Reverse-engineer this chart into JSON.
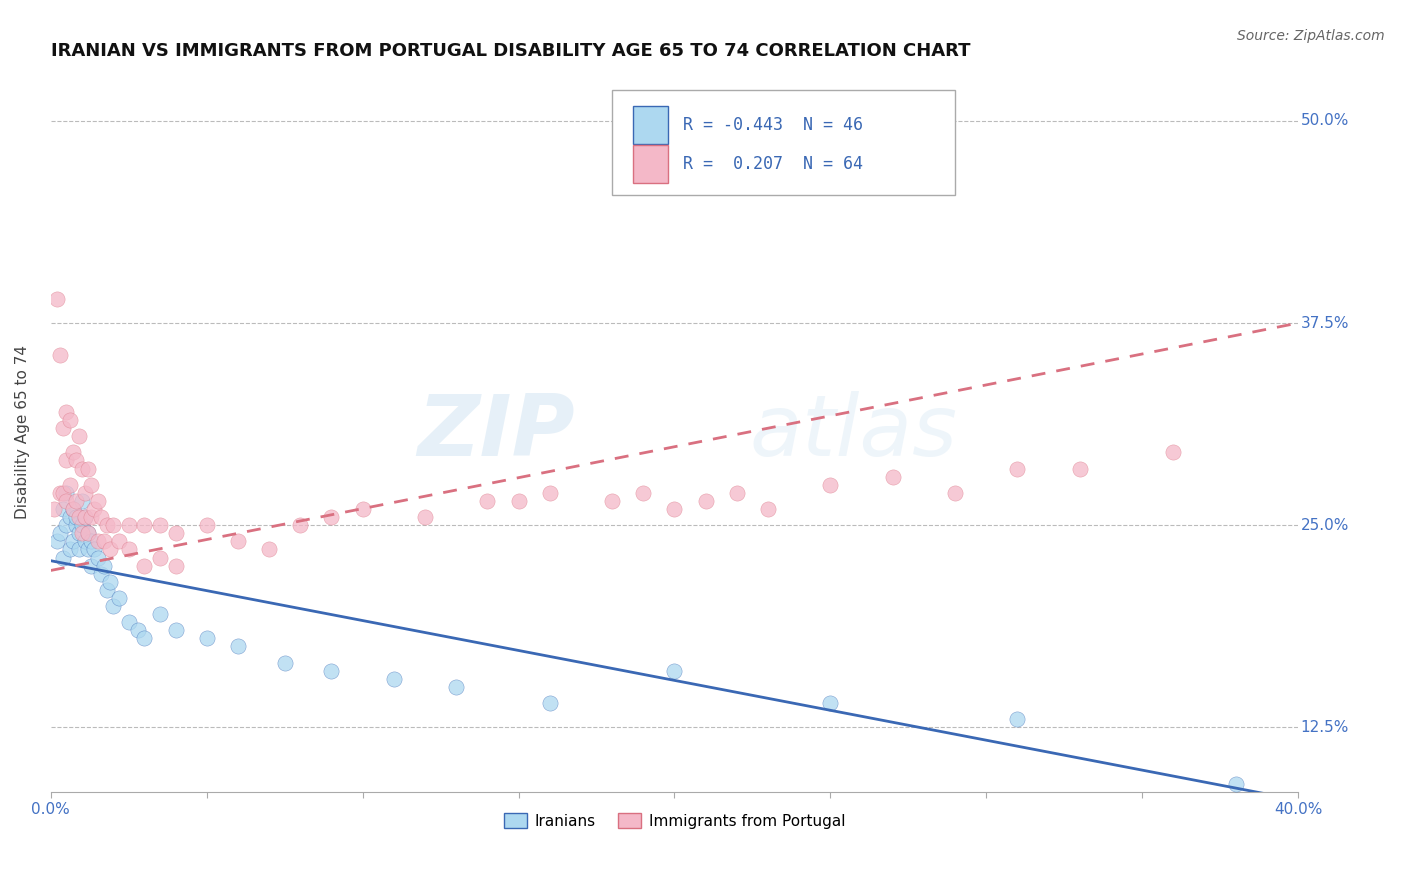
{
  "title": "IRANIAN VS IMMIGRANTS FROM PORTUGAL DISABILITY AGE 65 TO 74 CORRELATION CHART",
  "source": "Source: ZipAtlas.com",
  "ylabel": "Disability Age 65 to 74",
  "xlim": [
    0.0,
    0.4
  ],
  "ylim": [
    0.085,
    0.53
  ],
  "ytick_positions": [
    0.125,
    0.25,
    0.375,
    0.5
  ],
  "yticklabels": [
    "12.5%",
    "25.0%",
    "37.5%",
    "50.0%"
  ],
  "xtick_positions": [
    0.0,
    0.05,
    0.1,
    0.15,
    0.2,
    0.25,
    0.3,
    0.35,
    0.4
  ],
  "xticklabels_show": [
    "0.0%",
    "40.0%"
  ],
  "legend_r1": "R = -0.443",
  "legend_n1": "N = 46",
  "legend_r2": "R =  0.207",
  "legend_n2": "N = 64",
  "color_iranian": "#ADD8F0",
  "color_portugal": "#F4B8C8",
  "line_color_iranian": "#3A68B4",
  "line_color_portugal": "#D97080",
  "background_color": "#FFFFFF",
  "grid_color": "#BBBBBB",
  "watermark": "ZIPatlas",
  "iranians_x": [
    0.002,
    0.003,
    0.004,
    0.004,
    0.005,
    0.005,
    0.006,
    0.006,
    0.007,
    0.007,
    0.008,
    0.008,
    0.009,
    0.009,
    0.01,
    0.01,
    0.011,
    0.011,
    0.012,
    0.012,
    0.013,
    0.013,
    0.014,
    0.015,
    0.016,
    0.017,
    0.018,
    0.019,
    0.02,
    0.022,
    0.025,
    0.028,
    0.03,
    0.035,
    0.04,
    0.05,
    0.06,
    0.075,
    0.09,
    0.11,
    0.13,
    0.16,
    0.2,
    0.25,
    0.31,
    0.38
  ],
  "iranians_y": [
    0.24,
    0.245,
    0.26,
    0.23,
    0.25,
    0.27,
    0.255,
    0.235,
    0.26,
    0.24,
    0.25,
    0.255,
    0.235,
    0.245,
    0.25,
    0.265,
    0.24,
    0.255,
    0.235,
    0.245,
    0.225,
    0.24,
    0.235,
    0.23,
    0.22,
    0.225,
    0.21,
    0.215,
    0.2,
    0.205,
    0.19,
    0.185,
    0.18,
    0.195,
    0.185,
    0.18,
    0.175,
    0.165,
    0.16,
    0.155,
    0.15,
    0.14,
    0.16,
    0.14,
    0.13,
    0.09
  ],
  "portugal_x": [
    0.001,
    0.002,
    0.003,
    0.003,
    0.004,
    0.004,
    0.005,
    0.005,
    0.005,
    0.006,
    0.006,
    0.007,
    0.007,
    0.008,
    0.008,
    0.009,
    0.009,
    0.01,
    0.01,
    0.011,
    0.011,
    0.012,
    0.012,
    0.013,
    0.013,
    0.014,
    0.015,
    0.015,
    0.016,
    0.017,
    0.018,
    0.019,
    0.02,
    0.022,
    0.025,
    0.025,
    0.03,
    0.03,
    0.035,
    0.035,
    0.04,
    0.04,
    0.05,
    0.06,
    0.07,
    0.08,
    0.09,
    0.1,
    0.12,
    0.14,
    0.15,
    0.16,
    0.18,
    0.19,
    0.2,
    0.21,
    0.22,
    0.23,
    0.25,
    0.27,
    0.29,
    0.31,
    0.33,
    0.36
  ],
  "portugal_y": [
    0.26,
    0.39,
    0.27,
    0.355,
    0.31,
    0.27,
    0.32,
    0.29,
    0.265,
    0.315,
    0.275,
    0.295,
    0.26,
    0.29,
    0.265,
    0.305,
    0.255,
    0.285,
    0.245,
    0.27,
    0.255,
    0.285,
    0.245,
    0.275,
    0.255,
    0.26,
    0.265,
    0.24,
    0.255,
    0.24,
    0.25,
    0.235,
    0.25,
    0.24,
    0.25,
    0.235,
    0.25,
    0.225,
    0.25,
    0.23,
    0.245,
    0.225,
    0.25,
    0.24,
    0.235,
    0.25,
    0.255,
    0.26,
    0.255,
    0.265,
    0.265,
    0.27,
    0.265,
    0.27,
    0.26,
    0.265,
    0.27,
    0.26,
    0.275,
    0.28,
    0.27,
    0.285,
    0.285,
    0.295
  ],
  "ir_line_x0": 0.0,
  "ir_line_y0": 0.228,
  "ir_line_x1": 0.4,
  "ir_line_y1": 0.08,
  "pt_line_x0": 0.0,
  "pt_line_y0": 0.222,
  "pt_line_x1": 0.4,
  "pt_line_y1": 0.375,
  "title_fontsize": 13,
  "axis_label_fontsize": 11,
  "tick_fontsize": 11
}
